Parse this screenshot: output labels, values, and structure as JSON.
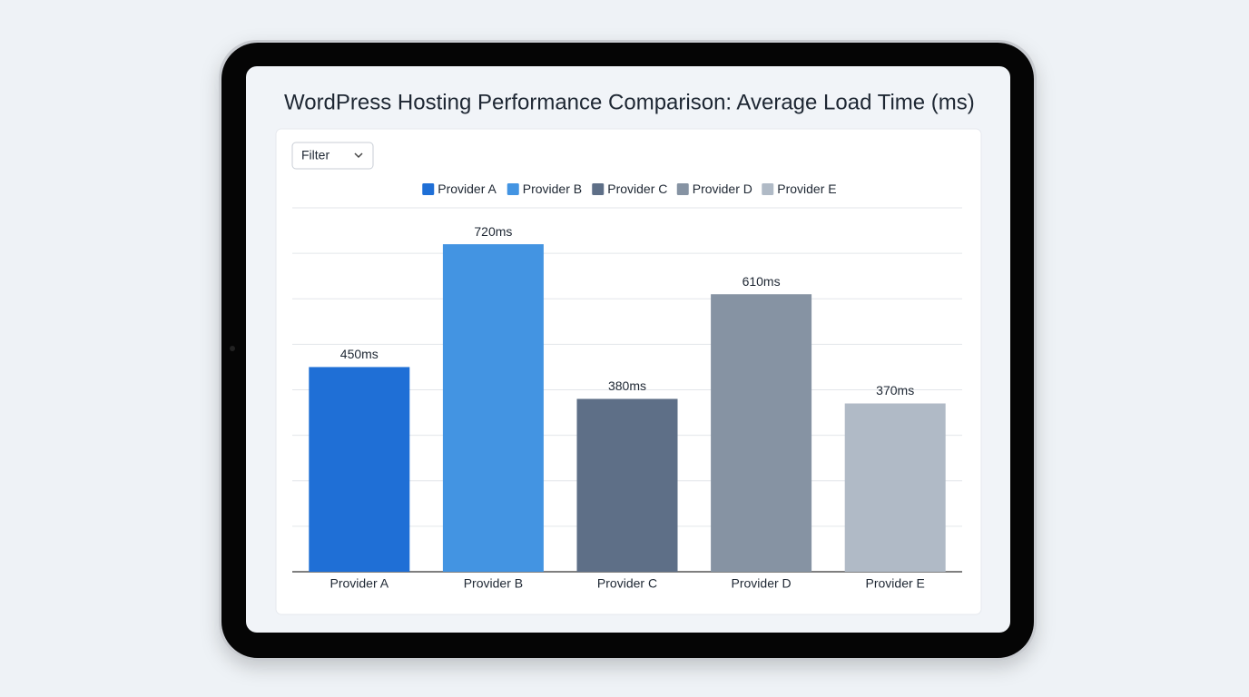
{
  "controls": {
    "filter": "Filter"
  },
  "chart_data": {
    "type": "bar",
    "title": "WordPress Hosting Performance Comparison: Average Load Time (ms)",
    "categories": [
      "Provider A",
      "Provider B",
      "Provider C",
      "Provider D",
      "Provider E"
    ],
    "values": [
      450,
      720,
      380,
      610,
      370
    ],
    "value_labels": [
      "450ms",
      "720ms",
      "380ms",
      "610ms",
      "370ms"
    ],
    "colors": [
      "#1f6fd6",
      "#4394e2",
      "#5e6f87",
      "#8693a3",
      "#b0bac6"
    ],
    "ylim": [
      0,
      800
    ],
    "yticks": [
      0,
      100,
      200,
      300,
      400,
      500,
      600,
      700,
      800
    ],
    "grid": true
  }
}
